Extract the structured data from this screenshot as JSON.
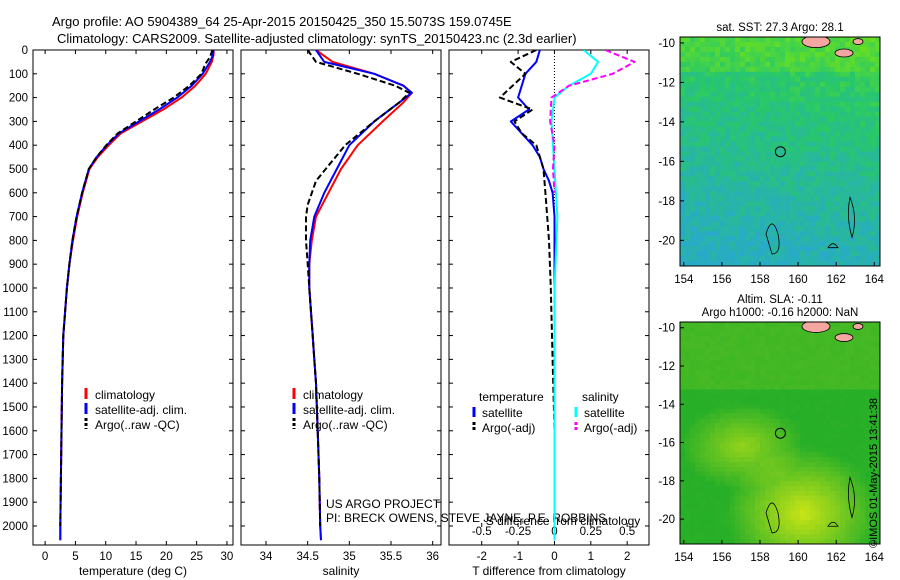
{
  "header": {
    "line1": "Argo profile: AO 5904389_64 25-Apr-2015 20150425_350 15.5073S 159.0745E",
    "line2": "Climatology: CARS2009. Satellite-adjusted climatology: synTS_20150423.nc (2.3d earlier)"
  },
  "footer_stamp": "©IMOS 01-May-2015 13:41:38",
  "colors": {
    "climatology": "#ff0000",
    "satellite": "#0000ff",
    "argo": "#000000",
    "sal_sat": "#00ffff",
    "sal_argo": "#ff00ff",
    "land": "#f4a6a0"
  },
  "chart_data": [
    {
      "type": "line",
      "panel": "temperature",
      "xlabel": "temperature (deg C)",
      "ylabel": "",
      "xlim": [
        -2,
        31
      ],
      "ylim": [
        0,
        2080
      ],
      "y_inverted": true,
      "x_ticks": [
        "0",
        "5",
        "10",
        "15",
        "20",
        "25",
        "30"
      ],
      "y_ticks": [
        "0",
        "100",
        "200",
        "300",
        "400",
        "500",
        "600",
        "700",
        "800",
        "900",
        "1000",
        "1100",
        "1200",
        "1300",
        "1400",
        "1500",
        "1600",
        "1700",
        "1800",
        "1900",
        "2000"
      ],
      "legend": {
        "placement": "lower-middle",
        "entries": [
          "climatology",
          "satellite-adj. clim.",
          "Argo(..raw -QC)"
        ]
      },
      "series": [
        {
          "name": "climatology",
          "color": "#ff0000",
          "dash": false,
          "x": [
            27.8,
            27.8,
            27.5,
            26.5,
            24.8,
            22.5,
            19.5,
            16.0,
            12.5,
            10.5,
            8.7,
            7.3,
            6.2,
            5.3,
            4.6,
            4.0,
            3.6,
            3.3,
            3.0,
            2.8,
            2.7,
            2.6,
            2.5,
            2.5
          ],
          "y": [
            0,
            20,
            50,
            100,
            150,
            200,
            250,
            300,
            350,
            400,
            450,
            500,
            600,
            700,
            800,
            900,
            1000,
            1100,
            1200,
            1400,
            1600,
            1800,
            2000,
            2060
          ]
        },
        {
          "name": "satellite-adj. clim.",
          "color": "#0000ff",
          "dash": false,
          "x": [
            27.8,
            27.7,
            27.2,
            26.0,
            24.2,
            21.8,
            18.8,
            15.5,
            12.2,
            10.2,
            8.5,
            7.2,
            6.1,
            5.2,
            4.5,
            4.0,
            3.6,
            3.3,
            3.0,
            2.8,
            2.7,
            2.6,
            2.5,
            2.5
          ],
          "y": [
            0,
            20,
            50,
            100,
            150,
            200,
            250,
            300,
            350,
            400,
            450,
            500,
            600,
            700,
            800,
            900,
            1000,
            1100,
            1200,
            1400,
            1600,
            1800,
            2000,
            2060
          ]
        },
        {
          "name": "Argo(..raw -QC)",
          "color": "#000000",
          "dash": true,
          "x": [
            27.6,
            27.2,
            26.4,
            25.8,
            23.8,
            21.2,
            18.0,
            15.0,
            12.0,
            10.1,
            8.5,
            7.2,
            6.1,
            5.2,
            4.5,
            4.0,
            3.6,
            3.3,
            3.0,
            2.8,
            2.7,
            2.6,
            2.5
          ],
          "y": [
            0,
            30,
            60,
            100,
            150,
            200,
            250,
            300,
            350,
            400,
            450,
            500,
            600,
            700,
            800,
            900,
            1000,
            1100,
            1200,
            1400,
            1600,
            1800,
            2000
          ]
        }
      ]
    },
    {
      "type": "line",
      "panel": "salinity",
      "xlabel": "salinity",
      "ylabel": "",
      "xlim": [
        33.7,
        36.1
      ],
      "ylim": [
        0,
        2080
      ],
      "y_inverted": true,
      "x_ticks": [
        "34",
        "34.5",
        "35",
        "35.5",
        "36"
      ],
      "annotation": [
        "US ARGO PROJECT",
        "PI: BRECK OWENS, STEVE JAYNE, P.E. ROBBINS"
      ],
      "legend": {
        "placement": "lower-middle",
        "entries": [
          "climatology",
          "satellite-adj. clim.",
          "Argo(..raw -QC)"
        ]
      },
      "series": [
        {
          "name": "climatology",
          "color": "#ff0000",
          "dash": false,
          "x": [
            34.6,
            34.8,
            35.3,
            35.65,
            35.75,
            35.65,
            35.4,
            35.1,
            34.9,
            34.75,
            34.6,
            34.55,
            34.52,
            34.52,
            34.54,
            34.56,
            34.58,
            34.6,
            34.62,
            34.64,
            34.65,
            34.66
          ],
          "y": [
            0,
            50,
            100,
            150,
            180,
            220,
            300,
            400,
            500,
            600,
            700,
            800,
            900,
            1000,
            1100,
            1200,
            1300,
            1400,
            1600,
            1800,
            2000,
            2060
          ]
        },
        {
          "name": "satellite-adj. clim.",
          "color": "#0000ff",
          "dash": false,
          "x": [
            34.6,
            34.7,
            35.3,
            35.65,
            35.75,
            35.6,
            35.3,
            35.0,
            34.85,
            34.7,
            34.58,
            34.53,
            34.52,
            34.52,
            34.54,
            34.56,
            34.58,
            34.6,
            34.62,
            34.64,
            34.65,
            34.66
          ],
          "y": [
            0,
            50,
            100,
            150,
            180,
            220,
            300,
            400,
            500,
            600,
            700,
            800,
            900,
            1000,
            1100,
            1200,
            1300,
            1400,
            1600,
            1800,
            2000,
            2060
          ]
        },
        {
          "name": "Argo(..raw -QC)",
          "color": "#000000",
          "dash": true,
          "x": [
            34.5,
            34.6,
            35.1,
            35.55,
            35.72,
            35.6,
            35.3,
            34.95,
            34.6,
            34.5,
            34.48,
            34.48,
            34.5,
            34.52,
            34.54,
            34.56,
            34.58,
            34.6,
            34.62,
            34.64,
            34.65
          ],
          "y": [
            0,
            50,
            100,
            150,
            180,
            220,
            300,
            400,
            550,
            650,
            700,
            800,
            900,
            1000,
            1100,
            1200,
            1300,
            1400,
            1600,
            1800,
            2000
          ]
        }
      ]
    },
    {
      "type": "line",
      "panel": "difference",
      "xlabel": "T difference from climatology",
      "x2label": "S difference from climatology",
      "xlim": [
        -2.9,
        2.6
      ],
      "x2lim": [
        -0.725,
        0.65
      ],
      "ylim": [
        0,
        2080
      ],
      "y_inverted": true,
      "x_ticks": [
        "-2",
        "-1",
        "0",
        "1",
        "2"
      ],
      "x2_ticks": [
        "-0.5",
        "-0.25",
        "0",
        "0.25",
        "0.5"
      ],
      "legend": {
        "placement": "lower-middle",
        "headers": [
          "temperature",
          "salinity"
        ],
        "entries": [
          "satellite",
          "Argo(-adj)",
          "satellite",
          "Argo(-adj)"
        ]
      },
      "series": [
        {
          "name": "temperature satellite",
          "color": "#0000ff",
          "dash": false,
          "axis": "T",
          "x": [
            -0.4,
            -0.5,
            -0.8,
            -1.0,
            -0.7,
            -1.2,
            -0.9,
            -0.6,
            -0.4,
            -0.3,
            -0.15,
            -0.05,
            0,
            0,
            0,
            0,
            0,
            0,
            0
          ],
          "y": [
            0,
            50,
            100,
            200,
            250,
            300,
            350,
            400,
            450,
            500,
            550,
            600,
            700,
            800,
            1000,
            1200,
            1500,
            1800,
            2060
          ]
        },
        {
          "name": "temperature Argo(-adj)",
          "color": "#000000",
          "dash": true,
          "axis": "T",
          "x": [
            -0.5,
            -1.2,
            -0.8,
            -1.5,
            -0.6,
            -1.1,
            -0.9,
            -0.5,
            -0.4,
            -0.3,
            -0.25,
            -0.2,
            -0.15,
            -0.1,
            -0.05,
            0,
            0
          ],
          "y": [
            0,
            50,
            100,
            200,
            250,
            300,
            350,
            400,
            450,
            500,
            600,
            700,
            800,
            1000,
            1300,
            1600,
            2000
          ]
        },
        {
          "name": "salinity satellite",
          "color": "#00ffff",
          "dash": false,
          "axis": "S",
          "x": [
            0.2,
            0.3,
            0.25,
            0.1,
            0.0,
            -0.02,
            0.0,
            0.02,
            0.0,
            0.0,
            0.0,
            0.0
          ],
          "y": [
            0,
            50,
            100,
            150,
            200,
            300,
            500,
            700,
            1000,
            1300,
            1700,
            2060
          ]
        },
        {
          "name": "salinity Argo(-adj)",
          "color": "#ff00ff",
          "dash": true,
          "axis": "S",
          "x": [
            0.35,
            0.55,
            0.4,
            0.1,
            -0.02,
            -0.03,
            0.0,
            -0.01,
            0.0
          ],
          "y": [
            0,
            50,
            100,
            150,
            200,
            300,
            400,
            500,
            600
          ]
        }
      ]
    },
    {
      "type": "heatmap",
      "panel": "sst-map",
      "title": "sat. SST: 27.3 Argo: 28.1",
      "x_ticks": [
        "154",
        "156",
        "158",
        "160",
        "162",
        "164"
      ],
      "y_ticks": [
        "-10",
        "-12",
        "-14",
        "-16",
        "-18",
        "-20"
      ],
      "xlim": [
        153.8,
        164.3
      ],
      "ylim": [
        -21.3,
        -9.7
      ],
      "marker": {
        "lon": 159.07,
        "lat": -15.51
      }
    },
    {
      "type": "heatmap",
      "panel": "sla-map",
      "title": [
        "Altim. SLA: -0.11",
        "Argo h1000: -0.16 h2000: NaN"
      ],
      "x_ticks": [
        "154",
        "156",
        "158",
        "160",
        "162",
        "164"
      ],
      "y_ticks": [
        "-10",
        "-12",
        "-14",
        "-16",
        "-18",
        "-20"
      ],
      "xlim": [
        153.8,
        164.3
      ],
      "ylim": [
        -21.3,
        -9.7
      ],
      "marker": {
        "lon": 159.07,
        "lat": -15.51
      }
    }
  ]
}
